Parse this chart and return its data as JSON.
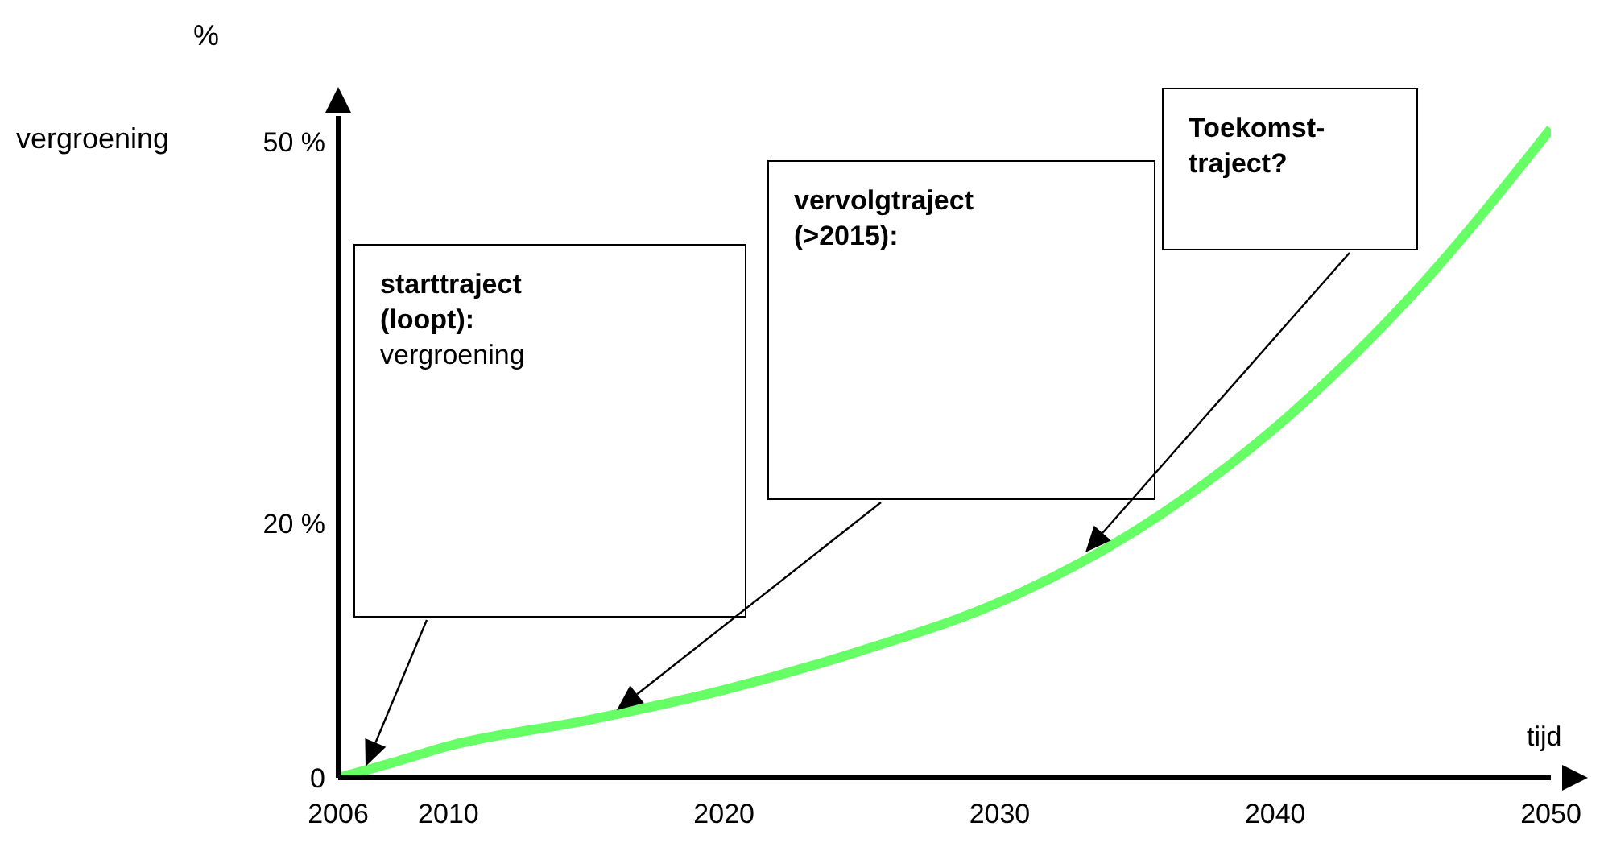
{
  "chart_data": {
    "type": "line",
    "xlabel": "tijd",
    "ylabel": "%\nvergroening",
    "x": [
      2006,
      2008,
      2010,
      2015,
      2020,
      2025,
      2030,
      2035,
      2040,
      2045,
      2050
    ],
    "series": [
      {
        "color": "#66ff66",
        "values": [
          0,
          1.2,
          2.5,
          4.5,
          6.9,
          10,
          13.8,
          19.5,
          27.5,
          38,
          51
        ]
      }
    ],
    "xlim": [
      2006,
      2050
    ],
    "xticks": [
      2006,
      2010,
      2020,
      2030,
      2040,
      2050
    ],
    "ylim": [
      0,
      52
    ],
    "yticks": [
      0,
      {
        "value": 20,
        "label": "20 %"
      },
      {
        "value": 50,
        "label": "50 %"
      }
    ],
    "grid": false,
    "legend": false,
    "marker": "none",
    "line_style": "solid",
    "annotations": [
      "starttraject\n(loopt):\nvergroening",
      "vervolgtraject\n(>2015):",
      "Toekomst-\ntraject?"
    ]
  }
}
